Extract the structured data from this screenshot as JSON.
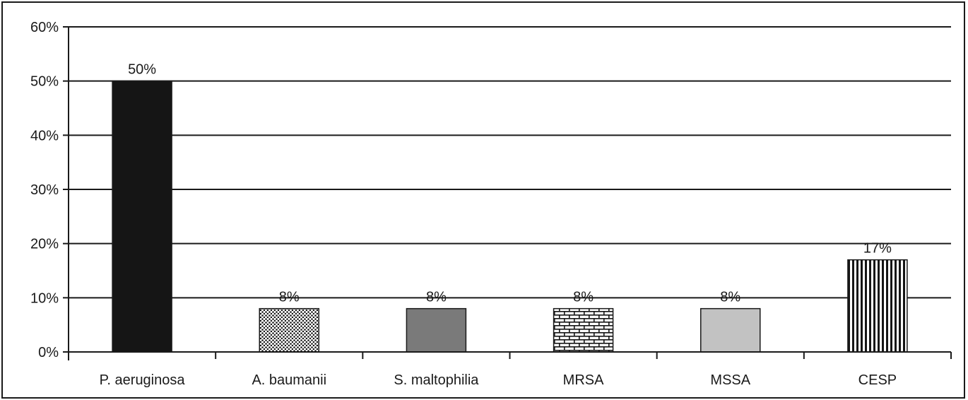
{
  "chart_data": {
    "type": "bar",
    "title": "",
    "xlabel": "",
    "ylabel": "",
    "categories": [
      "P. aeruginosa",
      "A. baumanii",
      "S. maltophilia",
      "MRSA",
      "MSSA",
      "CESP"
    ],
    "values": [
      50,
      8,
      8,
      8,
      8,
      17
    ],
    "data_labels": [
      "50%",
      "8%",
      "8%",
      "8%",
      "8%",
      "17%"
    ],
    "ylim": [
      0,
      60
    ],
    "yticks": [
      0,
      10,
      20,
      30,
      40,
      50,
      60
    ],
    "ytick_labels": [
      "0%",
      "10%",
      "20%",
      "30%",
      "40%",
      "50%",
      "60%"
    ],
    "grid": true,
    "legend": "none",
    "bar_fills": [
      "solid-black",
      "dots",
      "solid-gray",
      "bricks",
      "solid-light-gray",
      "vertical-stripes"
    ],
    "colors": {
      "solid-black": "#151515",
      "solid-gray": "#7a7a7a",
      "solid-light-gray": "#c2c2c2",
      "pattern-ink": "#151515",
      "axis": "#1a1a1a"
    }
  }
}
